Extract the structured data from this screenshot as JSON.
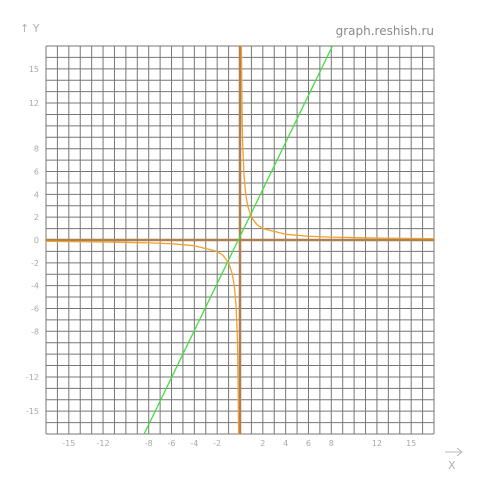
{
  "header": {
    "watermark": "graph.reshish.ru"
  },
  "chart_data": {
    "type": "line",
    "title": "",
    "xlabel": "X",
    "ylabel": "Y",
    "xlim": [
      -17,
      17
    ],
    "ylim": [
      -17,
      17
    ],
    "grid": true,
    "x_ticks": [
      -15,
      -12,
      -8,
      -6,
      -4,
      -2,
      2,
      4,
      6,
      8,
      12,
      15
    ],
    "x_tick_labels": [
      "-15",
      "-12",
      "-8",
      "-6",
      "-4",
      "-2",
      "2",
      "4",
      "6",
      "8",
      "12",
      "15"
    ],
    "y_ticks": [
      15,
      12,
      8,
      6,
      4,
      2,
      0,
      -2,
      -4,
      -6,
      -8,
      -12,
      -15
    ],
    "y_tick_labels": [
      "15",
      "12",
      "8",
      "6",
      "4",
      "2",
      "0",
      "-2",
      "-4",
      "-6",
      "-8",
      "-12",
      "-15"
    ],
    "series": [
      {
        "color": "#44dd44",
        "x": [
          -8.4,
          8.1
        ],
        "y": [
          -17,
          17
        ]
      },
      {
        "color": "#f0a030",
        "x": [
          -17,
          -12,
          -8,
          -6,
          -4,
          -2,
          -1.5,
          -1,
          -0.7,
          -0.5,
          -0.35,
          -0.25,
          -0.2,
          -0.12
        ],
        "y": [
          -0.12,
          -0.17,
          -0.25,
          -0.33,
          -0.5,
          -1,
          -1.33,
          -2,
          -2.9,
          -4,
          -5.7,
          -8,
          -10,
          -17
        ]
      },
      {
        "color": "#f0a030",
        "x": [
          0.12,
          0.2,
          0.25,
          0.35,
          0.5,
          0.7,
          1,
          1.5,
          2,
          4,
          6,
          8,
          12,
          17
        ],
        "y": [
          17,
          10,
          8,
          5.7,
          4,
          2.9,
          2,
          1.33,
          1,
          0.5,
          0.33,
          0.25,
          0.17,
          0.12
        ]
      }
    ]
  },
  "axis_names": {
    "x": "X",
    "y": "Y"
  },
  "colors": {
    "grid": "#777777",
    "axes": "#b07e50",
    "line": "#44dd44",
    "curve": "#f0a030"
  }
}
